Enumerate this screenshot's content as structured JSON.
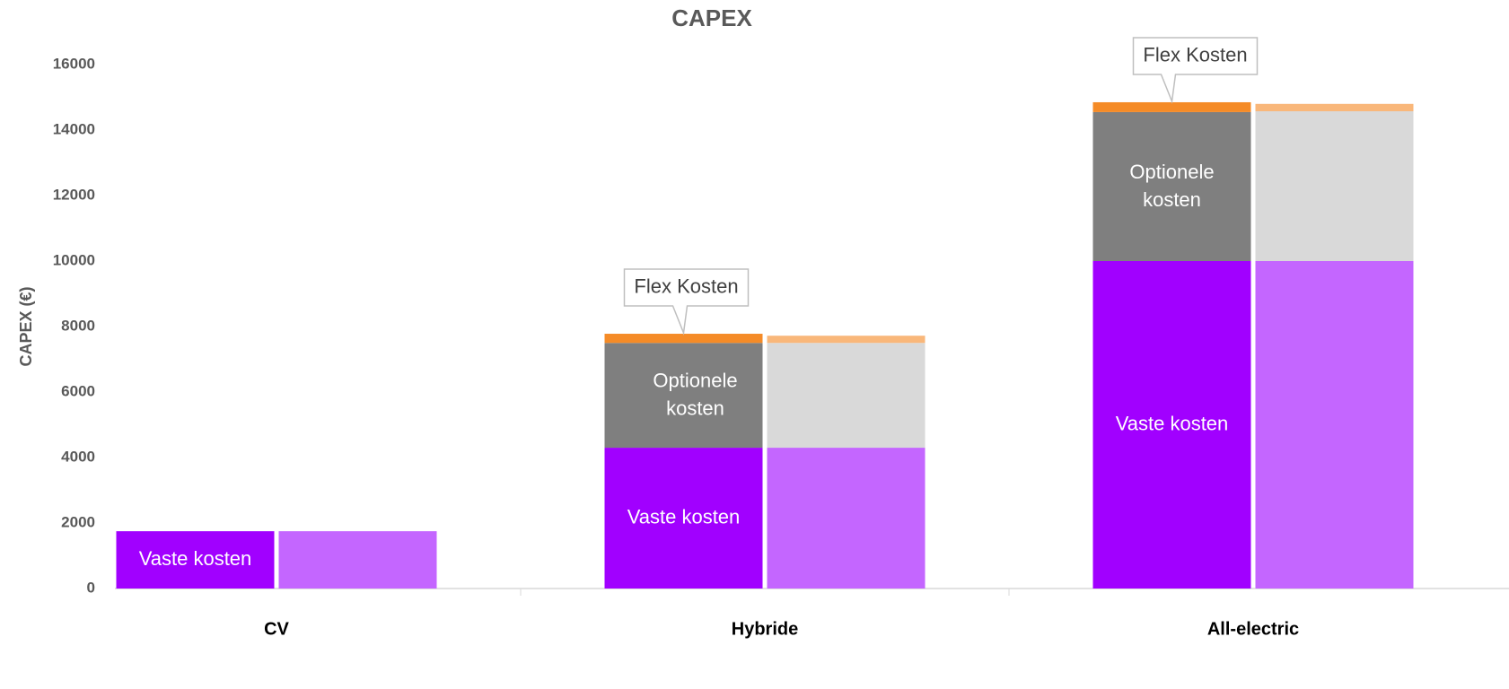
{
  "chart_data": {
    "type": "stacked_bar",
    "title": "CAPEX",
    "y_label": "CAPEX (€)",
    "categories": [
      "CV",
      "Hybride",
      "All-electric"
    ],
    "ylim": [
      0,
      16000
    ],
    "yticks": [
      0,
      2000,
      4000,
      6000,
      8000,
      10000,
      12000,
      14000,
      16000
    ],
    "grid": false,
    "series": [
      {
        "stack": "a",
        "color": "#a100ff",
        "values": [
          1750,
          4300,
          10000
        ],
        "value_labels": [
          "Vaste kosten",
          "Vaste kosten",
          "Vaste kosten"
        ]
      },
      {
        "stack": "a",
        "color": "#7f7f7f",
        "values": [
          0,
          3200,
          4550
        ],
        "value_labels": [
          null,
          "Optionele kosten",
          "Optionele kosten"
        ]
      },
      {
        "stack": "a",
        "color": "#f58b27",
        "values": [
          0,
          280,
          300
        ],
        "value_labels": [
          null,
          "Flex Kosten",
          "Flex Kosten"
        ]
      },
      {
        "stack": "b",
        "color": "#c466ff",
        "values": [
          1750,
          4300,
          10000
        ]
      },
      {
        "stack": "b",
        "color": "#d9d9d9",
        "values": [
          0,
          3200,
          4575
        ]
      },
      {
        "stack": "b",
        "color": "#f9b77a",
        "values": [
          0,
          220,
          225
        ]
      }
    ]
  }
}
